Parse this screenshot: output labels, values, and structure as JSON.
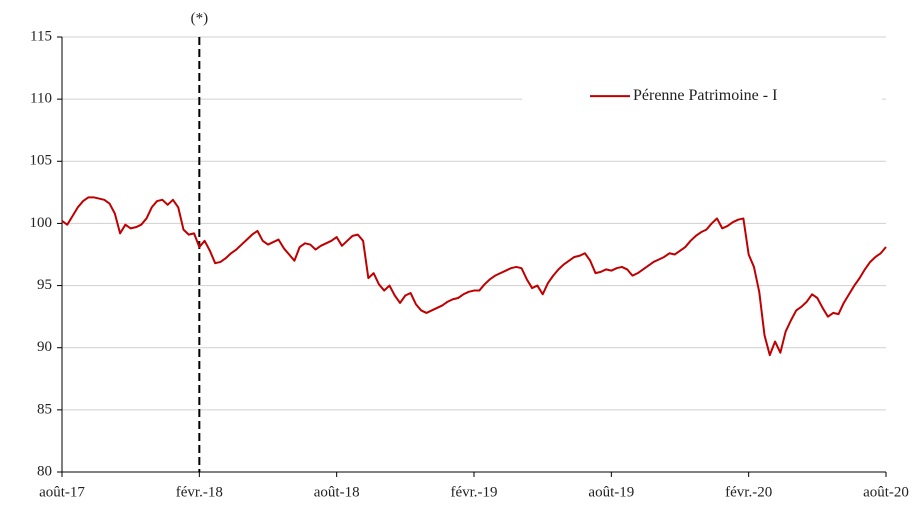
{
  "chart_data": {
    "type": "line",
    "categories": [
      "août-17",
      null,
      null,
      null,
      null,
      null,
      null,
      null,
      null,
      null,
      null,
      null,
      null,
      null,
      null,
      null,
      null,
      null,
      null,
      null,
      null,
      null,
      null,
      null,
      null,
      null,
      "févr.-18",
      null,
      null,
      null,
      null,
      null,
      null,
      null,
      null,
      null,
      null,
      null,
      null,
      null,
      null,
      null,
      null,
      null,
      null,
      null,
      null,
      null,
      null,
      null,
      null,
      null,
      "août-18",
      null,
      null,
      null,
      null,
      null,
      null,
      null,
      null,
      null,
      null,
      null,
      null,
      null,
      null,
      null,
      null,
      null,
      null,
      null,
      null,
      null,
      null,
      null,
      null,
      null,
      "févr.-19",
      null,
      null,
      null,
      null,
      null,
      null,
      null,
      null,
      null,
      null,
      null,
      null,
      null,
      null,
      null,
      null,
      null,
      null,
      null,
      null,
      null,
      null,
      null,
      null,
      null,
      "août-19",
      null,
      null,
      null,
      null,
      null,
      null,
      null,
      null,
      null,
      null,
      null,
      null,
      null,
      null,
      null,
      null,
      null,
      null,
      null,
      null,
      null,
      null,
      null,
      null,
      null,
      "févr.-20",
      null,
      null,
      null,
      null,
      null,
      null,
      null,
      null,
      null,
      null,
      null,
      null,
      null,
      null,
      null,
      null,
      null,
      null,
      null,
      null,
      null,
      null,
      null,
      null,
      null,
      "août-20"
    ],
    "series": [
      {
        "name": "Pérenne Patrimoine - I",
        "color": "#c00000",
        "values": [
          100.2,
          99.9,
          100.6,
          101.3,
          101.8,
          102.1,
          102.1,
          102.0,
          101.9,
          101.6,
          100.8,
          99.2,
          99.9,
          99.6,
          99.7,
          99.9,
          100.4,
          101.3,
          101.8,
          101.9,
          101.5,
          101.9,
          101.3,
          99.5,
          99.1,
          99.2,
          98.1,
          98.6,
          97.8,
          96.8,
          96.9,
          97.2,
          97.6,
          97.9,
          98.3,
          98.7,
          99.1,
          99.4,
          98.6,
          98.3,
          98.5,
          98.7,
          98.0,
          97.5,
          97.0,
          98.1,
          98.4,
          98.3,
          97.9,
          98.2,
          98.4,
          98.6,
          98.9,
          98.2,
          98.6,
          99.0,
          99.1,
          98.6,
          95.6,
          96.0,
          95.1,
          94.6,
          95.0,
          94.2,
          93.6,
          94.2,
          94.4,
          93.5,
          93.0,
          92.8,
          93.0,
          93.2,
          93.4,
          93.7,
          93.9,
          94.0,
          94.3,
          94.5,
          94.6,
          94.6,
          95.1,
          95.5,
          95.8,
          96.0,
          96.2,
          96.4,
          96.5,
          96.4,
          95.5,
          94.8,
          95.0,
          94.3,
          95.2,
          95.8,
          96.3,
          96.7,
          97.0,
          97.3,
          97.4,
          97.6,
          97.0,
          96.0,
          96.1,
          96.3,
          96.2,
          96.4,
          96.5,
          96.3,
          95.8,
          96.0,
          96.3,
          96.6,
          96.9,
          97.1,
          97.3,
          97.6,
          97.5,
          97.8,
          98.1,
          98.6,
          99.0,
          99.3,
          99.5,
          100.0,
          100.4,
          99.6,
          99.8,
          100.1,
          100.3,
          100.4,
          97.5,
          96.5,
          94.5,
          91.0,
          89.4,
          90.5,
          89.6,
          91.3,
          92.2,
          93.0,
          93.3,
          93.7,
          94.3,
          94.0,
          93.2,
          92.5,
          92.8,
          92.7,
          93.6,
          94.3,
          95.0,
          95.6,
          96.3,
          96.9,
          97.3,
          97.6,
          98.1
        ]
      }
    ],
    "ylim": [
      80,
      115
    ],
    "yticks": [
      80,
      85,
      90,
      95,
      100,
      105,
      110,
      115
    ],
    "grid": true,
    "legend": "upper right",
    "annotation": {
      "label": "(*)",
      "category": "févr.-18"
    }
  }
}
